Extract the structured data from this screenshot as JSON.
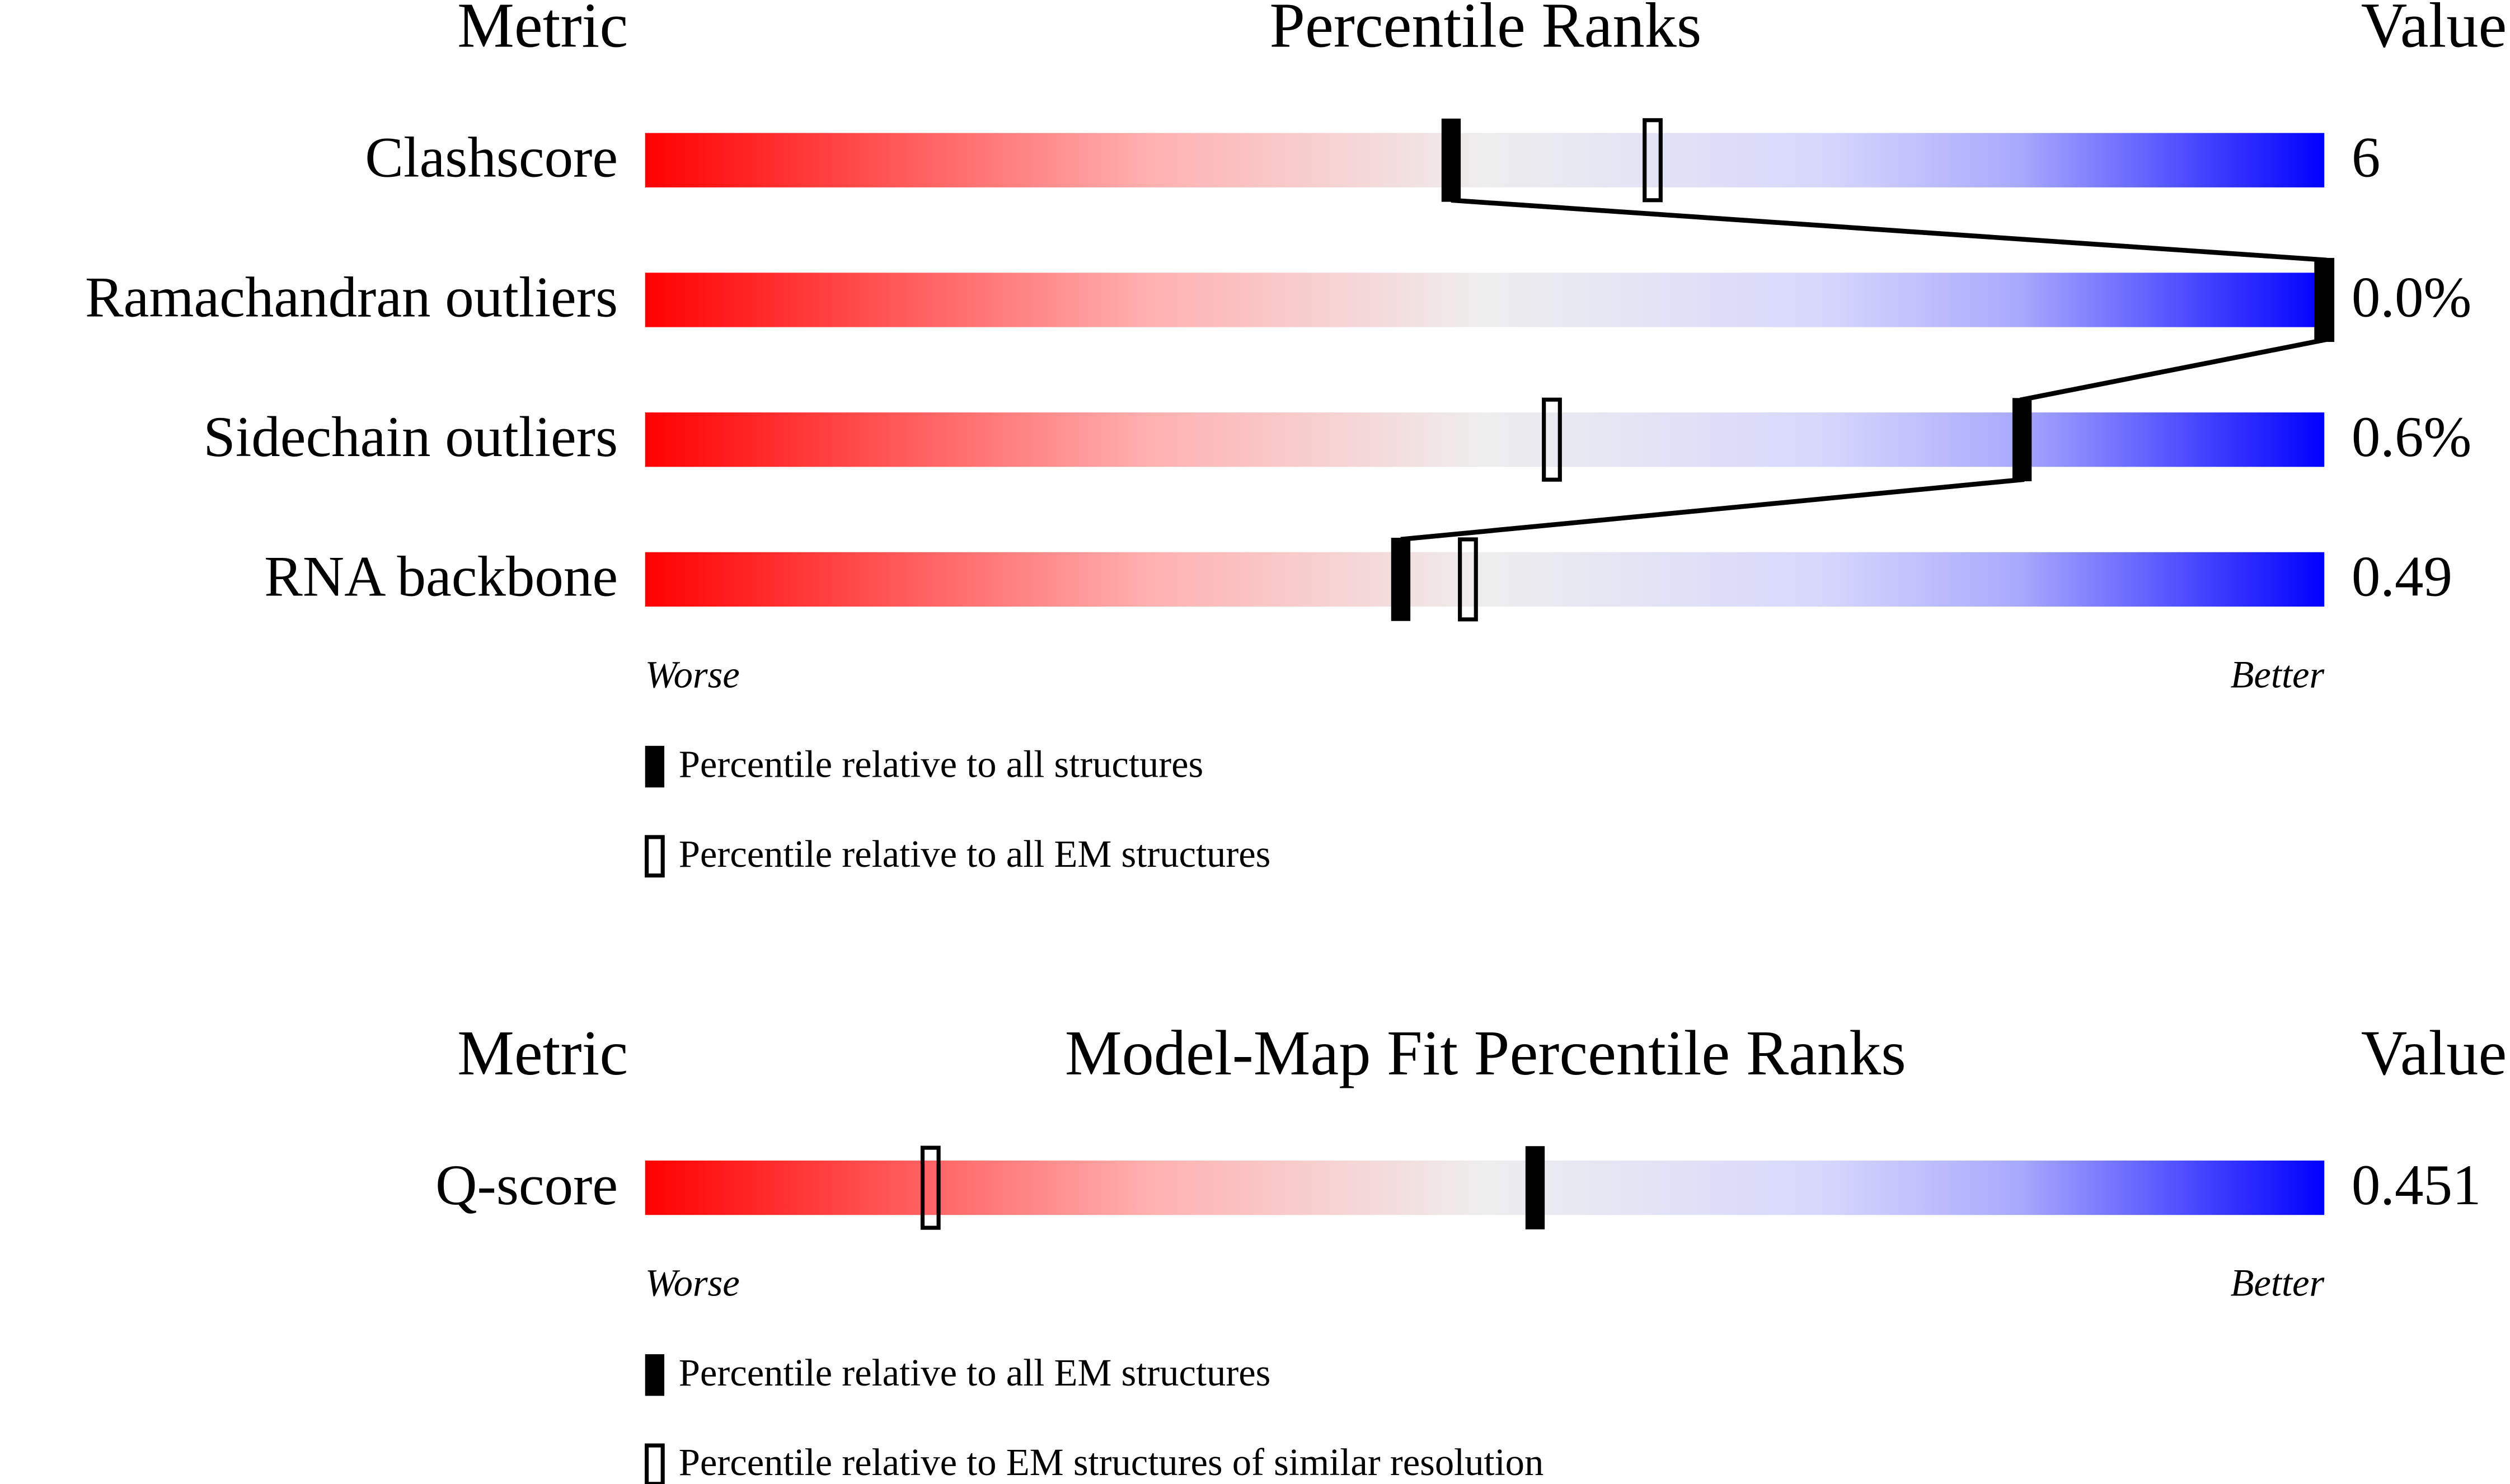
{
  "chart_data": [
    {
      "type": "percentile",
      "headers": {
        "metric": "Metric",
        "title": "Percentile Ranks",
        "value": "Value"
      },
      "xlim": [
        0,
        100
      ],
      "categories": [
        "Clashscore",
        "Ramachandran outliers",
        "Sidechain outliers",
        "RNA backbone"
      ],
      "metric_values": [
        "6",
        "0.0%",
        "0.6%",
        "0.49"
      ],
      "series": [
        {
          "name": "Percentile relative to all EM structures",
          "marker": "hollow",
          "values": [
            60,
            100,
            54,
            49
          ]
        },
        {
          "name": "Percentile relative to all structures",
          "marker": "filled",
          "values": [
            48,
            100,
            82,
            45
          ]
        }
      ],
      "legend_order": [
        1,
        0
      ],
      "connect_line": true,
      "worse": "Worse",
      "better": "Better"
    },
    {
      "type": "percentile",
      "headers": {
        "metric": "Metric",
        "title": "Model-Map Fit Percentile Ranks",
        "value": "Value"
      },
      "xlim": [
        0,
        100
      ],
      "categories": [
        "Q-score"
      ],
      "metric_values": [
        "0.451"
      ],
      "series": [
        {
          "name": "Percentile relative to EM structures of similar resolution",
          "marker": "hollow",
          "values": [
            17
          ]
        },
        {
          "name": "Percentile relative to all EM structures",
          "marker": "filled",
          "values": [
            53
          ]
        }
      ],
      "legend_order": [
        1,
        0
      ],
      "connect_line": false,
      "worse": "Worse",
      "better": "Better"
    }
  ]
}
